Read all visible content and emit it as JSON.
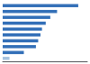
{
  "chart_data": {
    "type": "bar",
    "orientation": "horizontal",
    "categories": [
      null,
      null,
      null,
      null,
      null,
      null,
      null,
      null,
      null,
      null
    ],
    "values": [
      100,
      72,
      63,
      57,
      52,
      50,
      47,
      44,
      28,
      9
    ],
    "colors": [
      "#3470b8",
      "#3470b8",
      "#3470b8",
      "#3470b8",
      "#3470b8",
      "#3470b8",
      "#3470b8",
      "#3470b8",
      "#3470b8",
      "#a8c4e0"
    ],
    "xlim": [
      0,
      112
    ],
    "grid": false,
    "tick_labels": false
  }
}
